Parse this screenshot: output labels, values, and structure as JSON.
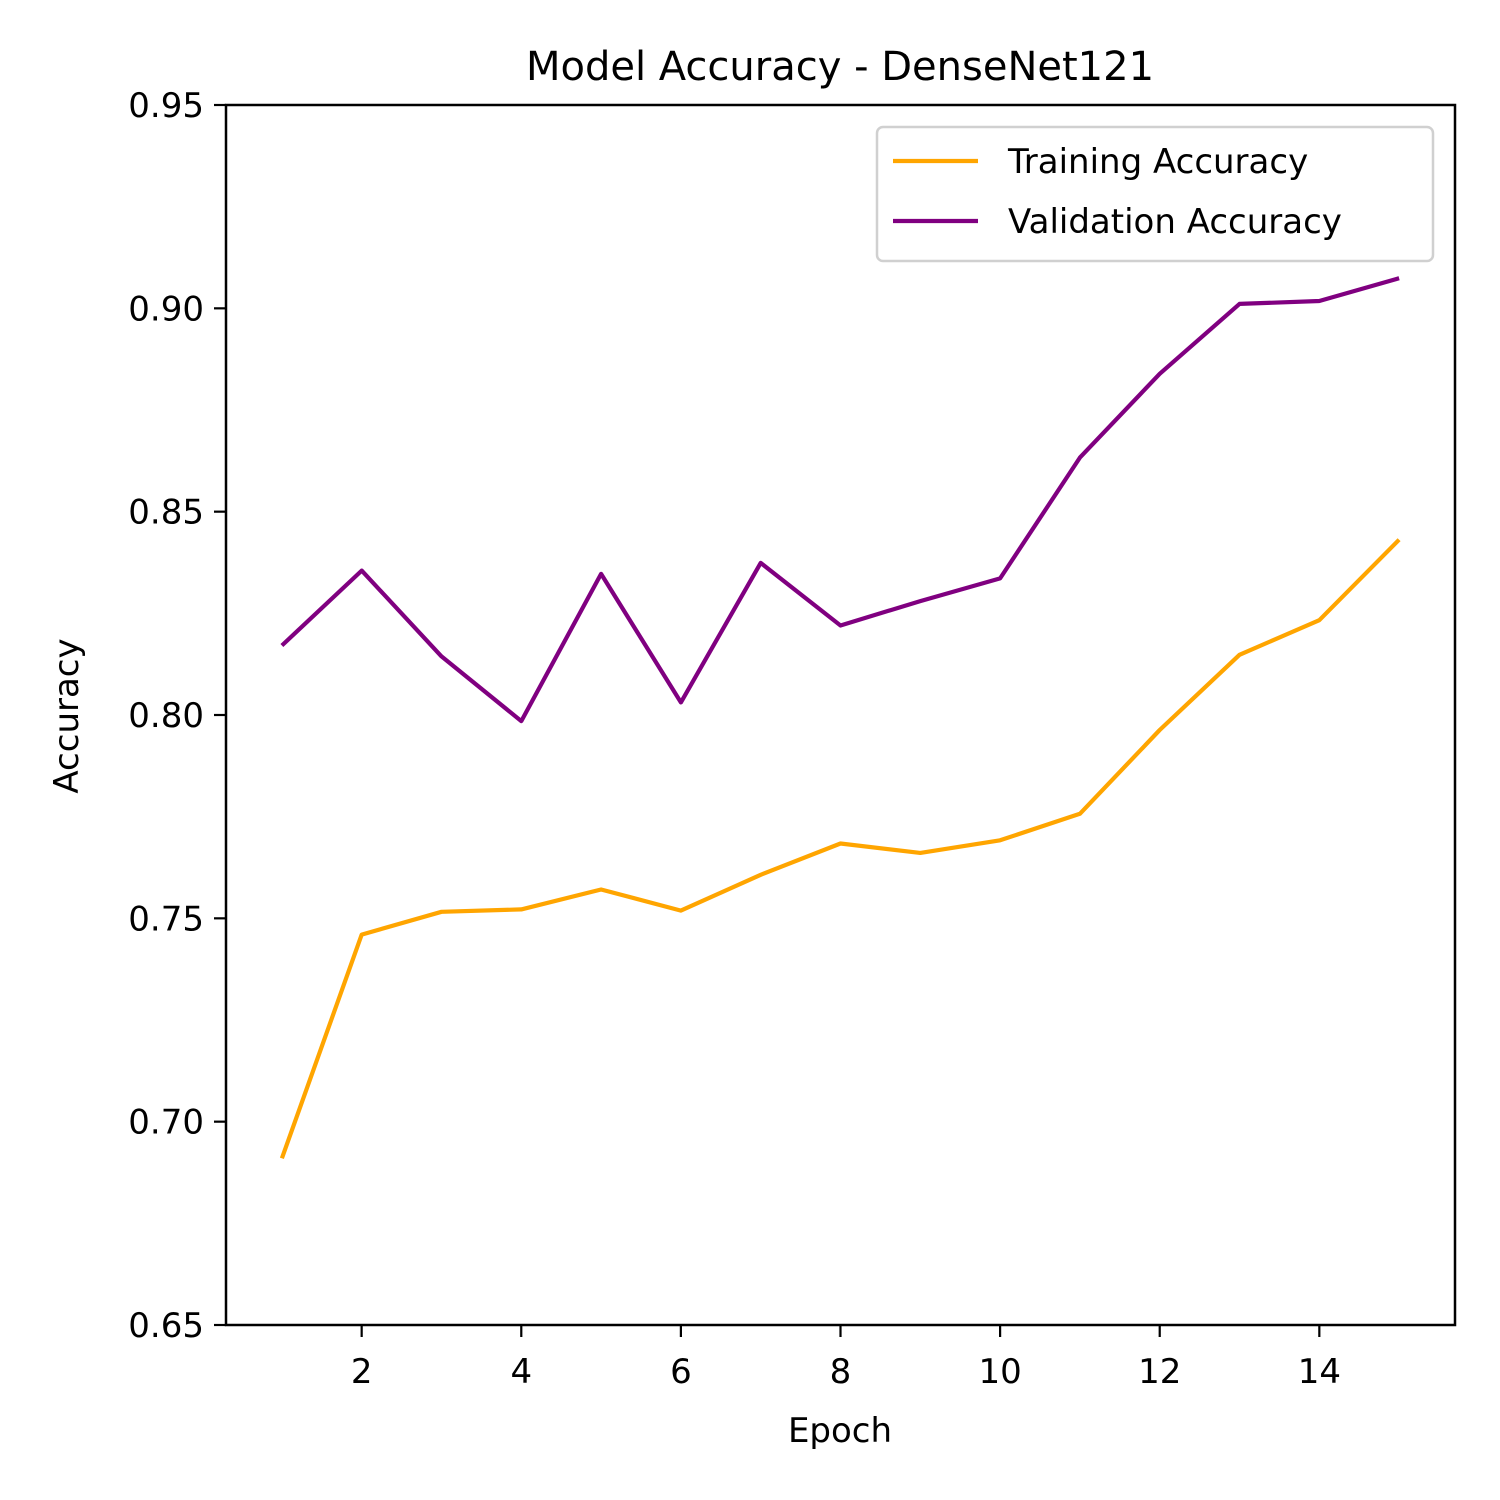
{
  "chart_data": {
    "type": "line",
    "title": "Model Accuracy - DenseNet121",
    "xlabel": "Epoch",
    "ylabel": "Accuracy",
    "xlim": [
      0.3,
      15.7
    ],
    "ylim": [
      0.65,
      0.95
    ],
    "xticks": [
      2,
      4,
      6,
      8,
      10,
      12,
      14
    ],
    "yticks": [
      0.65,
      0.7,
      0.75,
      0.8,
      0.85,
      0.9,
      0.95
    ],
    "ytick_labels": [
      "0.65",
      "0.70",
      "0.75",
      "0.80",
      "0.85",
      "0.90",
      "0.95"
    ],
    "grid": false,
    "legend_position": "top-right",
    "x": [
      1,
      2,
      3,
      4,
      5,
      6,
      7,
      8,
      9,
      10,
      11,
      12,
      13,
      14,
      15
    ],
    "series": [
      {
        "name": "Training Accuracy",
        "color": "#FFA500",
        "values": [
          0.691,
          0.746,
          0.7516,
          0.7522,
          0.7571,
          0.7519,
          0.7607,
          0.7684,
          0.7661,
          0.7692,
          0.7757,
          0.7963,
          0.8148,
          0.8233,
          0.8431
        ]
      },
      {
        "name": "Validation Accuracy",
        "color": "#800080",
        "values": [
          0.8171,
          0.8355,
          0.8144,
          0.7985,
          0.8347,
          0.8031,
          0.8374,
          0.822,
          0.828,
          0.8336,
          0.8633,
          0.8839,
          0.9011,
          0.9018,
          0.9074
        ]
      }
    ]
  }
}
